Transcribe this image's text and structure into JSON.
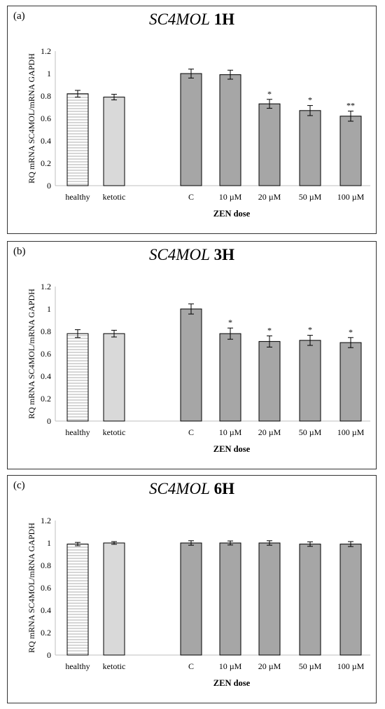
{
  "chart_data": [
    {
      "panel_label": "(a)",
      "title_gene": "SC4MOL",
      "title_time": "1H",
      "type": "bar",
      "ylabel": "RQ mRNA SC4MOL/mRNA GAPDH",
      "xlabel": "ZEN dose",
      "ylim": [
        0,
        1.2
      ],
      "yticks": [
        "0",
        "0.2",
        "0.4",
        "0.6",
        "0.8",
        "1",
        "1.2"
      ],
      "categories": [
        "healthy",
        "ketotic",
        "C",
        "10 µM",
        "20 µM",
        "50 µM",
        "100 µM"
      ],
      "values": [
        0.82,
        0.79,
        1.0,
        0.99,
        0.73,
        0.67,
        0.62
      ],
      "errors": [
        0.03,
        0.025,
        0.04,
        0.04,
        0.04,
        0.045,
        0.045
      ],
      "significance": [
        "",
        "",
        "",
        "",
        "*",
        "*",
        "**"
      ],
      "fills": [
        "#ffffff",
        "#d9d9d9",
        "#a6a6a6",
        "#a6a6a6",
        "#a6a6a6",
        "#a6a6a6",
        "#a6a6a6"
      ],
      "hatched": [
        true,
        false,
        false,
        false,
        false,
        false,
        false
      ]
    },
    {
      "panel_label": "(b)",
      "title_gene": "SC4MOL",
      "title_time": "3H",
      "type": "bar",
      "ylabel": "RQ mRNA SC4MOL/mRNA GAPDH",
      "xlabel": "ZEN dose",
      "ylim": [
        0,
        1.2
      ],
      "yticks": [
        "0",
        "0.2",
        "0.4",
        "0.6",
        "0.8",
        "1",
        "1.2"
      ],
      "categories": [
        "healthy",
        "ketotic",
        "C",
        "10 µM",
        "20 µM",
        "50 µM",
        "100 µM"
      ],
      "values": [
        0.78,
        0.78,
        1.0,
        0.78,
        0.71,
        0.72,
        0.7
      ],
      "errors": [
        0.035,
        0.03,
        0.045,
        0.05,
        0.05,
        0.045,
        0.045
      ],
      "significance": [
        "",
        "",
        "",
        "*",
        "*",
        "*",
        "*"
      ],
      "fills": [
        "#ffffff",
        "#d9d9d9",
        "#a6a6a6",
        "#a6a6a6",
        "#a6a6a6",
        "#a6a6a6",
        "#a6a6a6"
      ],
      "hatched": [
        true,
        false,
        false,
        false,
        false,
        false,
        false
      ]
    },
    {
      "panel_label": "(c)",
      "title_gene": "SC4MOL",
      "title_time": "6H",
      "type": "bar",
      "ylabel": "RQ mRNA SC4MOL/mRNA GAPDH",
      "xlabel": "ZEN dose",
      "ylim": [
        0,
        1.2
      ],
      "yticks": [
        "0",
        "0.2",
        "0.4",
        "0.6",
        "0.8",
        "1",
        "1.2"
      ],
      "categories": [
        "healthy",
        "ketotic",
        "C",
        "10 µM",
        "20 µM",
        "50 µM",
        "100 µM"
      ],
      "values": [
        0.99,
        1.0,
        1.0,
        1.0,
        1.0,
        0.99,
        0.99
      ],
      "errors": [
        0.015,
        0.012,
        0.02,
        0.018,
        0.02,
        0.02,
        0.022
      ],
      "significance": [
        "",
        "",
        "",
        "",
        "",
        "",
        ""
      ],
      "fills": [
        "#ffffff",
        "#d9d9d9",
        "#a6a6a6",
        "#a6a6a6",
        "#a6a6a6",
        "#a6a6a6",
        "#a6a6a6"
      ],
      "hatched": [
        true,
        false,
        false,
        false,
        false,
        false,
        false
      ]
    }
  ]
}
